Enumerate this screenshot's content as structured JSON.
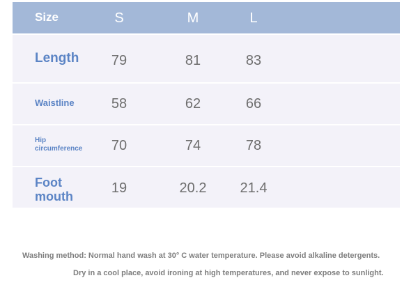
{
  "table": {
    "header_label": "Size",
    "sizes": [
      "S",
      "M",
      "L"
    ],
    "rows": [
      {
        "label": "Length",
        "values": [
          "79",
          "81",
          "83"
        ]
      },
      {
        "label": "Waistline",
        "values": [
          "58",
          "62",
          "66"
        ]
      },
      {
        "label_line1": "Hip",
        "label_line2": "circumference",
        "values": [
          "70",
          "74",
          "78"
        ]
      },
      {
        "label_line1": "Foot",
        "label_line2": "mouth",
        "values": [
          "19",
          "20.2",
          "21.4"
        ]
      }
    ]
  },
  "notes": {
    "line1": "Washing method: Normal hand wash at 30° C water temperature. Please avoid alkaline detergents.",
    "line2": "Dry in a cool place, avoid ironing at high temperatures, and never expose to sunlight."
  },
  "colors": {
    "header_bg": "#a3b8d8",
    "row_bg": "#f3f2f9",
    "label_text": "#5b84c5",
    "value_text": "#6e6e6e"
  }
}
